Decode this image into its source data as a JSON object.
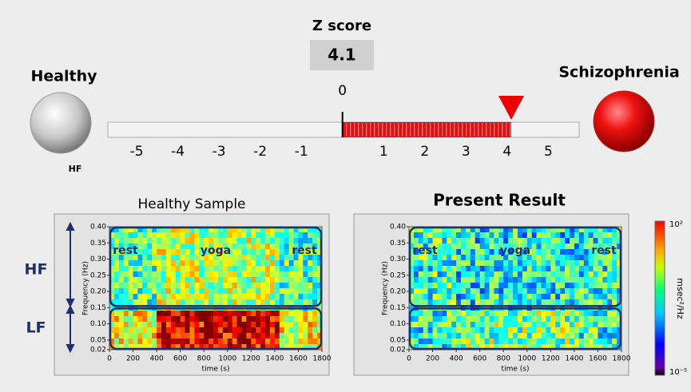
{
  "zscore": {
    "title": "Z score",
    "value": 4.1
  },
  "gauge": {
    "left_label": "Healthy",
    "left_sublabel": "HF",
    "right_label": "Schizophrenia",
    "xlim": [
      -5.7,
      5.75
    ],
    "ticks": [
      -5,
      -4,
      -3,
      -2,
      -1,
      0,
      1,
      2,
      3,
      4,
      5
    ]
  },
  "band_labels": [
    "HF",
    "LF"
  ],
  "panels": [
    {
      "title": "Healthy Sample",
      "xlabel": "time (s)",
      "ylabel": "Frequency (Hz)",
      "regions": [
        "rest",
        "yoga",
        "rest"
      ],
      "xlim": [
        0,
        1800
      ],
      "xticks": [
        0,
        200,
        400,
        600,
        800,
        1000,
        1200,
        1400,
        1600,
        1800
      ],
      "ylim": [
        0.02,
        0.4
      ],
      "yticks": [
        {
          "value": 0.4,
          "label": "0.40"
        },
        0.35,
        {
          "value": 0.3,
          "label": "0.30"
        },
        0.25,
        {
          "value": 0.2,
          "label": "0.20"
        },
        0.15,
        {
          "value": 0.1,
          "label": "0.10"
        },
        0.05,
        0.02
      ]
    },
    {
      "title": "Present Result",
      "xlabel": "time (s)",
      "ylabel": "Frequency (Hz)",
      "regions": [
        "rest",
        "yoga",
        "rest"
      ],
      "xlim": [
        0,
        1800
      ],
      "xticks": [
        0,
        200,
        400,
        600,
        800,
        1000,
        1200,
        1400,
        1600,
        1800
      ],
      "ylim": [
        0.02,
        0.4
      ],
      "yticks": [
        {
          "value": 0.4,
          "label": "0.40"
        },
        0.35,
        {
          "value": 0.3,
          "label": "0.30"
        },
        0.25,
        {
          "value": 0.2,
          "label": "0.20"
        },
        0.15,
        {
          "value": 0.1,
          "label": "0.10"
        },
        0.05,
        0.02
      ]
    }
  ],
  "colorbar": {
    "label": "msec²/Hz",
    "max_label": "10²",
    "min_label": "10⁻⁵"
  }
}
